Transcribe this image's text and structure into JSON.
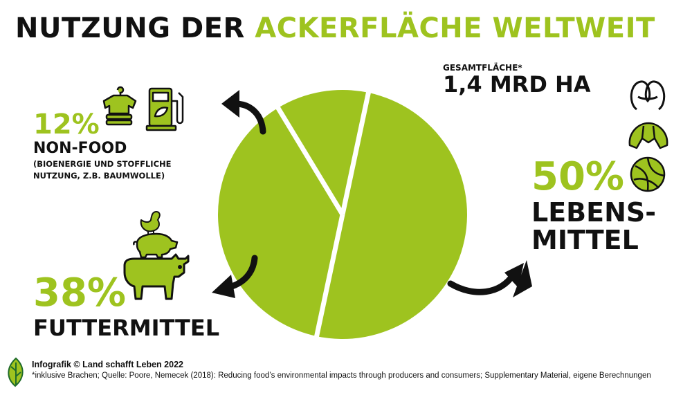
{
  "title": {
    "part1": "NUTZUNG DER",
    "part2": "ACKERFLÄCHE WELTWEIT"
  },
  "total": {
    "label": "GESAMTFLÄCHE*",
    "value": "1,4 MRD HA"
  },
  "colors": {
    "green": "#9ec31f",
    "dark": "#111111",
    "white": "#ffffff"
  },
  "chart_data": {
    "type": "pie",
    "title": "NUTZUNG DER ACKERFLÄCHE WELTWEIT",
    "slices": [
      {
        "label": "LEBENSMITTEL",
        "value": 50,
        "display": "50%"
      },
      {
        "label": "FUTTERMITTEL",
        "value": 38,
        "display": "38%"
      },
      {
        "label": "NON-FOOD",
        "value": 12,
        "display": "12%"
      }
    ]
  },
  "segments": {
    "nonfood": {
      "pct": "12%",
      "label": "NON-FOOD",
      "desc_line1": "(BIOENERGIE UND STOFFLICHE",
      "desc_line2": "NUTZUNG, Z.B. BAUMWOLLE)"
    },
    "food": {
      "pct": "50%",
      "label_line1": "LEBENS-",
      "label_line2": "MITTEL"
    },
    "feed": {
      "pct": "38%",
      "label": "FUTTERMITTEL"
    }
  },
  "icons": {
    "nonfood": [
      "tshirt-icon",
      "fuel-pump-icon"
    ],
    "food": [
      "pretzel-icon",
      "croissant-icon",
      "bread-roll-icon"
    ],
    "feed": [
      "chicken-icon",
      "pig-icon",
      "cow-icon"
    ],
    "logo": "leaf-logo-icon"
  },
  "footer": {
    "credit": "Infografik © Land schafft Leben 2022",
    "source": "*inklusive Brachen; Quelle: Poore, Nemecek (2018): Reducing food’s environmental impacts through producers and consumers; Supplementary Material, eigene Berechnungen"
  }
}
